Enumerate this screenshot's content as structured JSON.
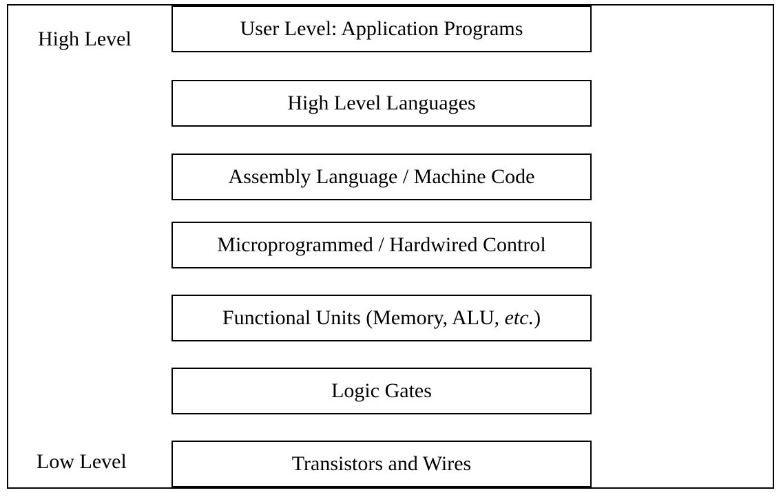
{
  "diagram": {
    "high_label": "High Level",
    "low_label": "Low Level",
    "layers": [
      {
        "text": "User Level: Application Programs"
      },
      {
        "text": "High Level Languages"
      },
      {
        "text": "Assembly Language / Machine Code"
      },
      {
        "text": "Microprogrammed / Hardwired Control"
      },
      {
        "text_before": "Functional Units (Memory, ALU, ",
        "text_italic": "etc.",
        "text_after": ")"
      },
      {
        "text": "Logic Gates"
      },
      {
        "text": "Transistors and Wires"
      }
    ]
  }
}
